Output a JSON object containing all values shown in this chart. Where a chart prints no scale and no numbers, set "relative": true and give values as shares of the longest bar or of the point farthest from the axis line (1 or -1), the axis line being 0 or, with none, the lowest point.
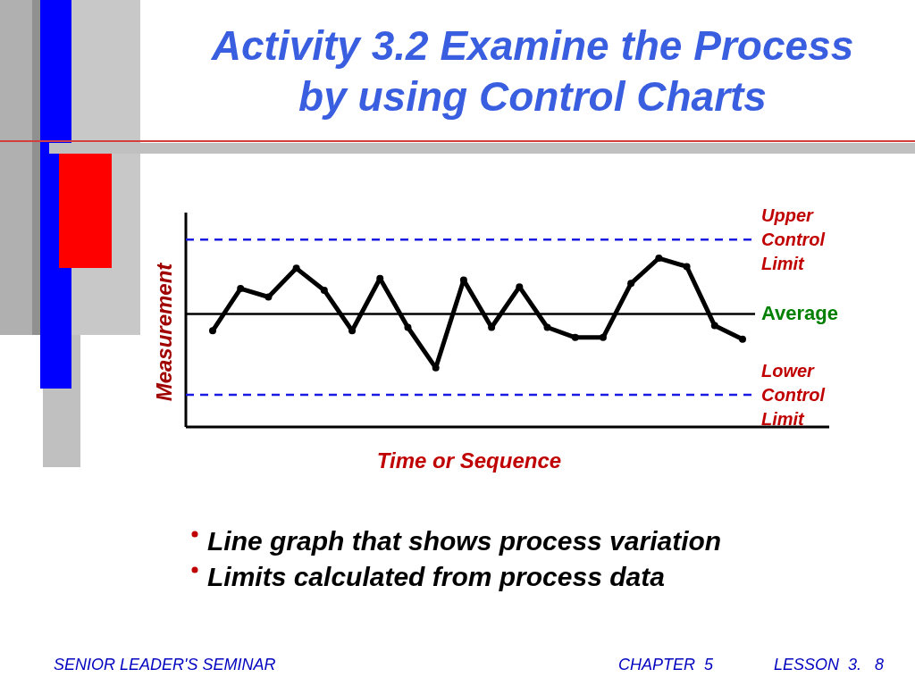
{
  "chart_data": {
    "type": "line",
    "title": "Activity 3.2  Examine the Process by using Control Charts",
    "xlabel": "Time or Sequence",
    "ylabel": "Measurement",
    "relative": true,
    "categories": [
      null,
      null,
      null,
      null,
      null,
      null,
      null,
      null,
      null,
      null,
      null,
      null,
      null,
      null,
      null,
      null,
      null,
      null,
      null,
      null
    ],
    "series": [
      {
        "color": "#000000",
        "values": [
          0.57,
          0.82,
          0.77,
          0.94,
          0.81,
          0.57,
          0.88,
          0.59,
          0.35,
          0.87,
          0.59,
          0.83,
          0.59,
          0.53,
          0.53,
          0.85,
          1,
          0.95,
          0.6,
          0.52
        ]
      }
    ],
    "marker": "circle",
    "line_style": "solid",
    "ref_lines": [
      {
        "axis": "y",
        "value": 1.11,
        "label": "Upper Control Limit",
        "color": "#1a1ae0",
        "line_style": "dashed"
      },
      {
        "axis": "y",
        "value": 0.67,
        "label": "Average",
        "color": "#000000",
        "line_style": "solid"
      },
      {
        "axis": "y",
        "value": 0.19,
        "label": "Lower Control Limit",
        "color": "#1a1ae0",
        "line_style": "dashed"
      }
    ],
    "annotations": [
      "Line graph that shows process variation",
      "Limits calculated from process data",
      "SENIOR LEADER'S SEMINAR",
      "CHAPTER  5",
      "LESSON  3.   8"
    ]
  }
}
